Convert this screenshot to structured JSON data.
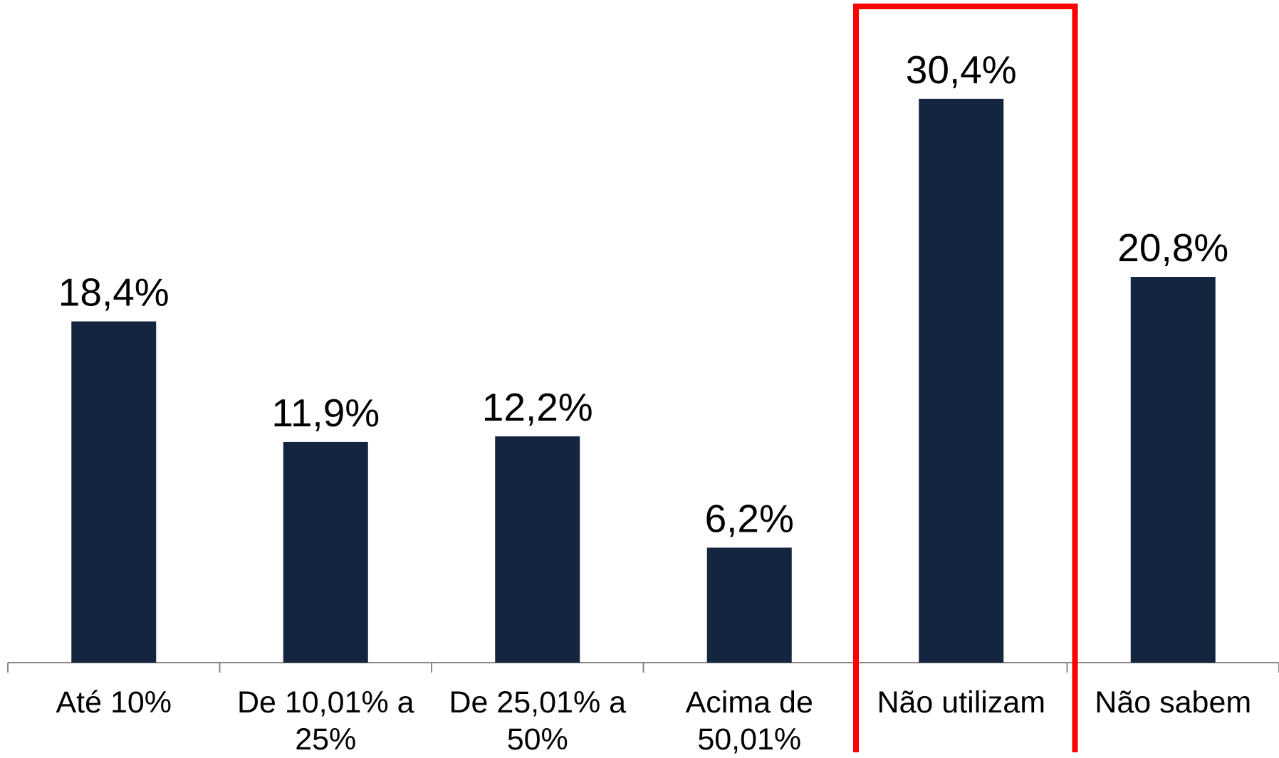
{
  "chart_data": {
    "type": "bar",
    "categories": [
      "Até 10%",
      "De 10,01% a 25%",
      "De 25,01% a 50%",
      "Acima de 50,01%",
      "Não utilizam",
      "Não sabem"
    ],
    "values": [
      18.4,
      11.9,
      12.2,
      6.2,
      30.4,
      20.8
    ],
    "value_labels": [
      "18,4%",
      "11,9%",
      "12,2%",
      "6,2%",
      "30,4%",
      "20,8%"
    ],
    "color": "#13253f",
    "ylim": [
      0,
      35
    ],
    "grid": false,
    "highlight_category": "Não utilizam",
    "highlight_color": "#ff0000"
  }
}
